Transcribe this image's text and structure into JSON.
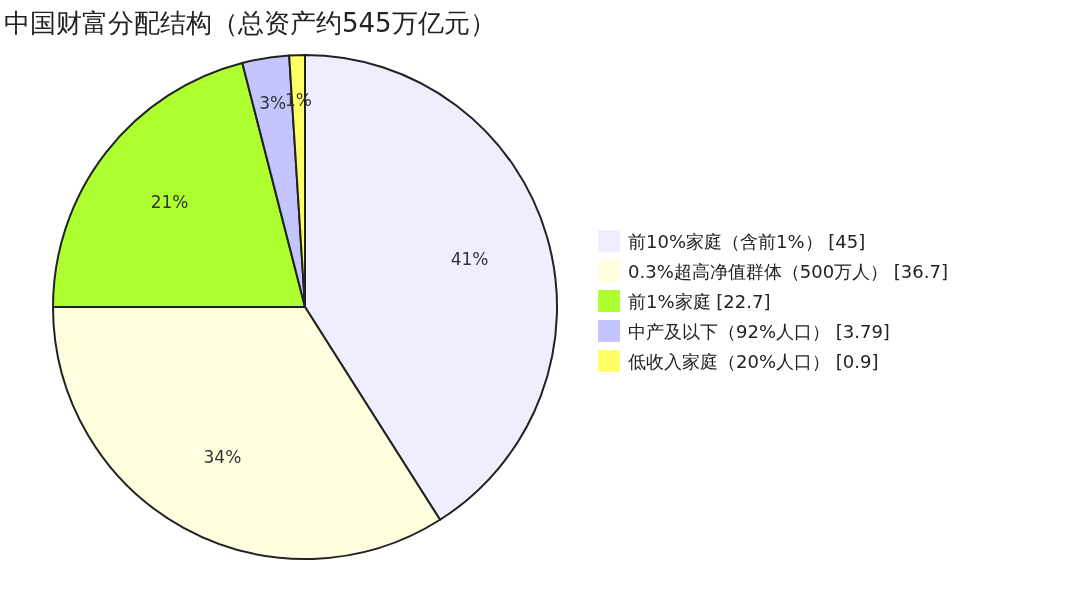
{
  "chart_data": {
    "type": "pie",
    "title": "中国财富分配结构（总资产约545万亿元）",
    "categories": [
      "前10%家庭（含前1%） [45]",
      "0.3%超高净值群体（500万人） [36.7]",
      "前1%家庭 [22.7]",
      "中产及以下（92%人口） [3.79]",
      "低收入家庭（20%人口） [0.9]"
    ],
    "values": [
      41,
      34,
      21,
      3,
      1
    ],
    "colors": [
      "#eeeeff",
      "#ffffe0",
      "#adff2f",
      "#c4c4ff",
      "#ffff66"
    ],
    "value_labels": [
      "41%",
      "34%",
      "21%",
      "3%",
      "1%"
    ],
    "legend": "right"
  }
}
